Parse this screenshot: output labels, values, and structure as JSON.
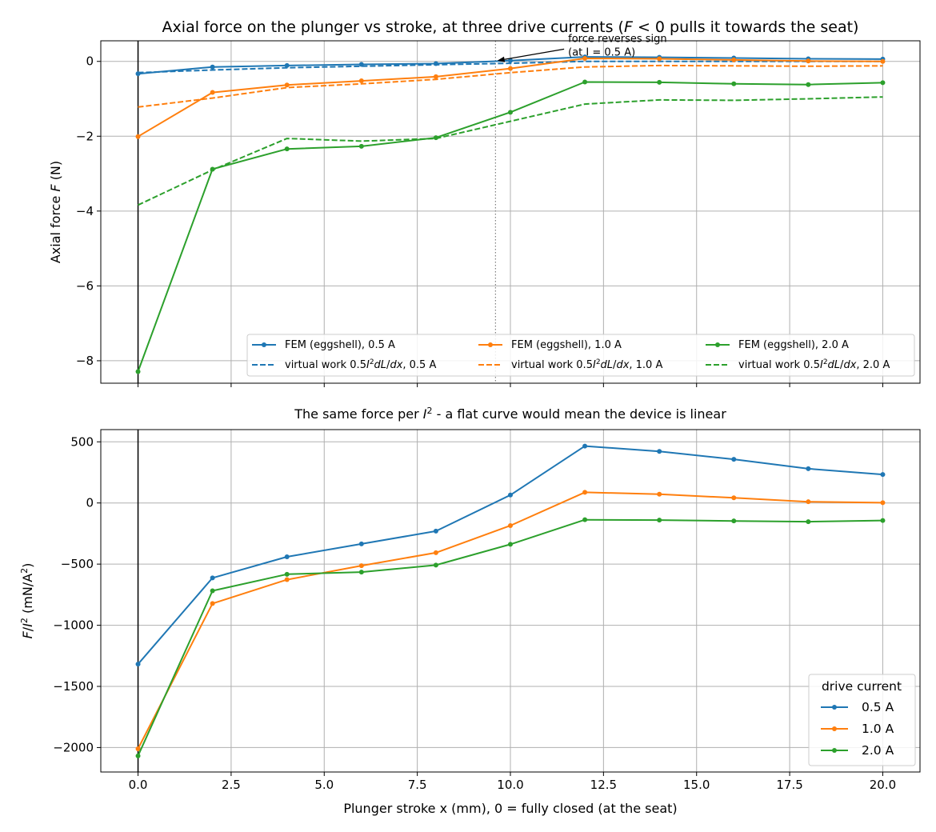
{
  "colors": {
    "series_0_5A": "#1f77b4",
    "series_1_0A": "#ff7f0e",
    "series_2_0A": "#2ca02c",
    "grid": "#b0b0b0",
    "reverse_marker": "#808080"
  },
  "chart_data": [
    {
      "type": "line",
      "title_parts": {
        "before": "Axial force on the plunger vs stroke, at three drive currents (",
        "italic_var": "F",
        "after": " < 0 pulls it towards the seat)"
      },
      "xlabel": "",
      "ylabel_parts": {
        "before": "Axial force ",
        "italic_var": "F",
        "after": " (N)"
      },
      "xlim": [
        -1,
        21
      ],
      "ylim": [
        -8.6,
        0.55
      ],
      "xticks": [
        0.0,
        2.5,
        5.0,
        7.5,
        10.0,
        12.5,
        15.0,
        17.5,
        20.0
      ],
      "xtick_labels": [],
      "yticks": [
        0,
        -2,
        -4,
        -6,
        -8
      ],
      "ytick_labels": [
        "0",
        "−2",
        "−4",
        "−6",
        "−8"
      ],
      "grid": true,
      "legend_placement": "lower-right",
      "x": [
        0,
        2,
        4,
        6,
        8,
        10,
        12,
        14,
        16,
        18,
        20
      ],
      "series": [
        {
          "name": "FEM (eggshell), 0.5 A",
          "style": "solid-markers",
          "color_key": "series_0_5A",
          "values": [
            -0.33,
            -0.15,
            -0.11,
            -0.08,
            -0.06,
            0.02,
            0.12,
            0.11,
            0.09,
            0.07,
            0.06
          ]
        },
        {
          "name": "virtual work 0.5I²dL/dx, 0.5 A",
          "legend_math": [
            "virtual work 0.5",
            "I",
            "2",
            "dL",
            "/",
            "dx",
            ", 0.5 A"
          ],
          "style": "dashed",
          "color_key": "series_0_5A",
          "values": [
            -0.3,
            -0.23,
            -0.17,
            -0.13,
            -0.09,
            -0.05,
            0.0,
            0.0,
            0.0,
            0.0,
            0.0
          ]
        },
        {
          "name": "FEM (eggshell), 1.0 A",
          "style": "solid-markers",
          "color_key": "series_1_0A",
          "values": [
            -2.01,
            -0.83,
            -0.63,
            -0.52,
            -0.41,
            -0.19,
            0.08,
            0.07,
            0.04,
            0.01,
            0.0
          ]
        },
        {
          "name": "virtual work 0.5I²dL/dx, 1.0 A",
          "legend_math": [
            "virtual work 0.5",
            "I",
            "2",
            "dL",
            "/",
            "dx",
            ", 1.0 A"
          ],
          "style": "dashed",
          "color_key": "series_1_0A",
          "values": [
            -1.22,
            -0.98,
            -0.7,
            -0.6,
            -0.48,
            -0.3,
            -0.15,
            -0.11,
            -0.12,
            -0.13,
            -0.12
          ]
        },
        {
          "name": "FEM (eggshell), 2.0 A",
          "style": "solid-markers",
          "color_key": "series_2_0A",
          "values": [
            -8.29,
            -2.88,
            -2.34,
            -2.27,
            -2.04,
            -1.36,
            -0.55,
            -0.56,
            -0.6,
            -0.62,
            -0.57
          ]
        },
        {
          "name": "virtual work 0.5I²dL/dx, 2.0 A",
          "legend_math": [
            "virtual work 0.5",
            "I",
            "2",
            "dL",
            "/",
            "dx",
            ", 2.0 A"
          ],
          "style": "dashed",
          "color_key": "series_2_0A",
          "values": [
            -3.84,
            -2.9,
            -2.06,
            -2.13,
            -2.06,
            -1.6,
            -1.14,
            -1.03,
            -1.04,
            -1.0,
            -0.95
          ]
        }
      ],
      "vertical_lines": [
        {
          "x": 0,
          "style": "solid-black"
        },
        {
          "x": 9.6,
          "style": "dotted-gray"
        }
      ],
      "annotation": {
        "lines": [
          "force reverses sign",
          "(at I = 0.5 A)"
        ],
        "arrow_to": {
          "x": 9.65,
          "y": 0.02
        },
        "text_at": {
          "x": 11.55,
          "y": 0.5
        }
      }
    },
    {
      "type": "line",
      "title_parts": {
        "before": "The same force per ",
        "italic_var": "I",
        "sup": "2",
        "after": " - a flat curve would mean the device is linear"
      },
      "xlabel": "Plunger stroke x (mm), 0 = fully closed (at the seat)",
      "ylabel_parts": {
        "italic_a": "F",
        "slash": "/",
        "italic_b": "I",
        "sup": "2",
        "after": " (mN/A",
        "sup2": "2",
        "end": ")"
      },
      "xlim": [
        -1,
        21
      ],
      "ylim": [
        -2200,
        600
      ],
      "xticks": [
        0.0,
        2.5,
        5.0,
        7.5,
        10.0,
        12.5,
        15.0,
        17.5,
        20.0
      ],
      "xtick_labels": [
        "0.0",
        "2.5",
        "5.0",
        "7.5",
        "10.0",
        "12.5",
        "15.0",
        "17.5",
        "20.0"
      ],
      "yticks": [
        500,
        0,
        -500,
        -1000,
        -1500,
        -2000
      ],
      "ytick_labels": [
        "500",
        "0",
        "−500",
        "−1000",
        "−1500",
        "−2000"
      ],
      "grid": true,
      "legend_title": "drive current",
      "legend_placement": "lower-right",
      "x": [
        0,
        2,
        4,
        6,
        8,
        10,
        12,
        14,
        16,
        18,
        20
      ],
      "series": [
        {
          "name": "0.5 A",
          "color_key": "series_0_5A",
          "values": [
            -1318,
            -613,
            -440,
            -335,
            -230,
            65,
            465,
            422,
            357,
            280,
            233
          ]
        },
        {
          "name": "1.0 A",
          "color_key": "series_1_0A",
          "values": [
            -2010,
            -822,
            -627,
            -513,
            -407,
            -185,
            87,
            72,
            42,
            10,
            2
          ]
        },
        {
          "name": "2.0 A",
          "color_key": "series_2_0A",
          "values": [
            -2068,
            -718,
            -583,
            -565,
            -508,
            -338,
            -137,
            -140,
            -147,
            -153,
            -143
          ]
        }
      ],
      "vertical_lines": [
        {
          "x": 0,
          "style": "solid-black"
        }
      ]
    }
  ]
}
